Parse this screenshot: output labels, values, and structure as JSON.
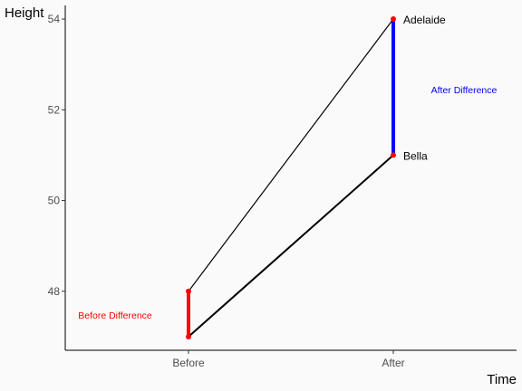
{
  "chart_data": {
    "type": "line",
    "xlabel": "Time",
    "ylabel": "Height",
    "categories": [
      "Before",
      "After"
    ],
    "ylim": [
      46.7,
      54.3
    ],
    "yticks": [
      48,
      50,
      52,
      54
    ],
    "grid": false,
    "series": [
      {
        "name": "Adelaide",
        "values": [
          48,
          54
        ]
      },
      {
        "name": "Bella",
        "values": [
          47,
          51
        ]
      }
    ],
    "segments": [
      {
        "label": "Before Difference",
        "category": "Before",
        "from": 47,
        "to": 48,
        "color": "#ff0000"
      },
      {
        "label": "After Difference",
        "category": "After",
        "from": 51,
        "to": 54,
        "color": "#0000ff"
      }
    ],
    "colors": {
      "points": "#ff0000",
      "lines": "#000000",
      "before": "#ff0000",
      "after": "#0000ff"
    }
  }
}
